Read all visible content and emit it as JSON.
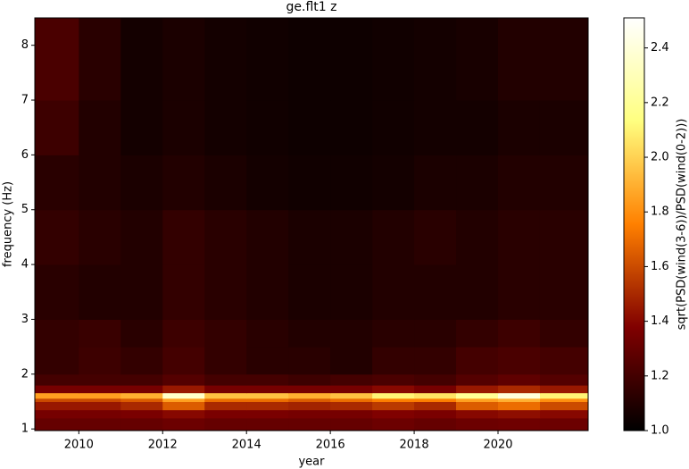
{
  "chart_data": {
    "type": "heatmap",
    "title": "ge.flt1 z",
    "x_label": "year",
    "y_label": "frequency (Hz)",
    "colorbar_label": "sqrt(PSD(wind(3-6))/PSD(wind(0-2)))",
    "colormap": "afmhot",
    "x_edges": [
      2008.95,
      2010,
      2011,
      2012,
      2013,
      2014,
      2015,
      2016,
      2017,
      2018,
      2019,
      2020,
      2021,
      2022.15
    ],
    "y_edges": [
      0.97,
      1.2,
      1.35,
      1.5,
      1.56,
      1.66,
      1.8,
      2.0,
      2.5,
      3.0,
      4.0,
      5.0,
      6.0,
      7.0,
      8.5
    ],
    "z": [
      [
        1.3,
        1.3,
        1.3,
        1.32,
        1.3,
        1.3,
        1.3,
        1.3,
        1.32,
        1.3,
        1.32,
        1.33,
        1.32
      ],
      [
        1.35,
        1.35,
        1.36,
        1.4,
        1.36,
        1.36,
        1.35,
        1.35,
        1.38,
        1.36,
        1.4,
        1.42,
        1.4
      ],
      [
        1.45,
        1.45,
        1.5,
        1.65,
        1.5,
        1.5,
        1.48,
        1.5,
        1.55,
        1.5,
        1.65,
        1.7,
        1.6
      ],
      [
        1.6,
        1.6,
        1.65,
        1.85,
        1.7,
        1.7,
        1.65,
        1.7,
        1.75,
        1.75,
        1.85,
        1.9,
        1.8
      ],
      [
        1.85,
        1.85,
        1.9,
        2.35,
        1.95,
        1.95,
        1.9,
        1.95,
        2.1,
        2.05,
        2.2,
        2.4,
        2.1
      ],
      [
        1.35,
        1.35,
        1.35,
        1.45,
        1.35,
        1.35,
        1.35,
        1.35,
        1.4,
        1.35,
        1.45,
        1.5,
        1.45
      ],
      [
        1.2,
        1.2,
        1.2,
        1.25,
        1.2,
        1.2,
        1.18,
        1.2,
        1.22,
        1.2,
        1.25,
        1.28,
        1.25
      ],
      [
        1.15,
        1.18,
        1.15,
        1.2,
        1.15,
        1.12,
        1.12,
        1.1,
        1.15,
        1.15,
        1.2,
        1.22,
        1.2
      ],
      [
        1.15,
        1.17,
        1.12,
        1.18,
        1.15,
        1.12,
        1.1,
        1.1,
        1.12,
        1.12,
        1.15,
        1.18,
        1.15
      ],
      [
        1.12,
        1.1,
        1.1,
        1.15,
        1.12,
        1.1,
        1.08,
        1.08,
        1.1,
        1.1,
        1.1,
        1.12,
        1.12
      ],
      [
        1.15,
        1.12,
        1.1,
        1.15,
        1.12,
        1.1,
        1.08,
        1.08,
        1.1,
        1.12,
        1.1,
        1.12,
        1.12
      ],
      [
        1.12,
        1.1,
        1.08,
        1.1,
        1.08,
        1.06,
        1.05,
        1.05,
        1.06,
        1.08,
        1.08,
        1.1,
        1.1
      ],
      [
        1.18,
        1.1,
        1.06,
        1.08,
        1.06,
        1.05,
        1.04,
        1.04,
        1.05,
        1.06,
        1.06,
        1.08,
        1.08
      ],
      [
        1.22,
        1.12,
        1.06,
        1.08,
        1.06,
        1.05,
        1.04,
        1.04,
        1.05,
        1.06,
        1.07,
        1.1,
        1.1
      ]
    ],
    "xlim": [
      2008.95,
      2022.15
    ],
    "ylim": [
      0.97,
      8.5
    ],
    "clim": [
      1.0,
      2.51
    ],
    "xticks": [
      2010,
      2012,
      2014,
      2016,
      2018,
      2020
    ],
    "yticks": [
      1,
      2,
      3,
      4,
      5,
      6,
      7,
      8
    ],
    "cticks": [
      {
        "value": 1.0,
        "label": "1.0"
      },
      {
        "value": 1.2,
        "label": "1.2"
      },
      {
        "value": 1.4,
        "label": "1.4"
      },
      {
        "value": 1.6,
        "label": "1.6"
      },
      {
        "value": 1.8,
        "label": "1.8"
      },
      {
        "value": 2.0,
        "label": "2.0"
      },
      {
        "value": 2.2,
        "label": "2.2"
      },
      {
        "value": 2.4,
        "label": "2.4"
      }
    ]
  }
}
